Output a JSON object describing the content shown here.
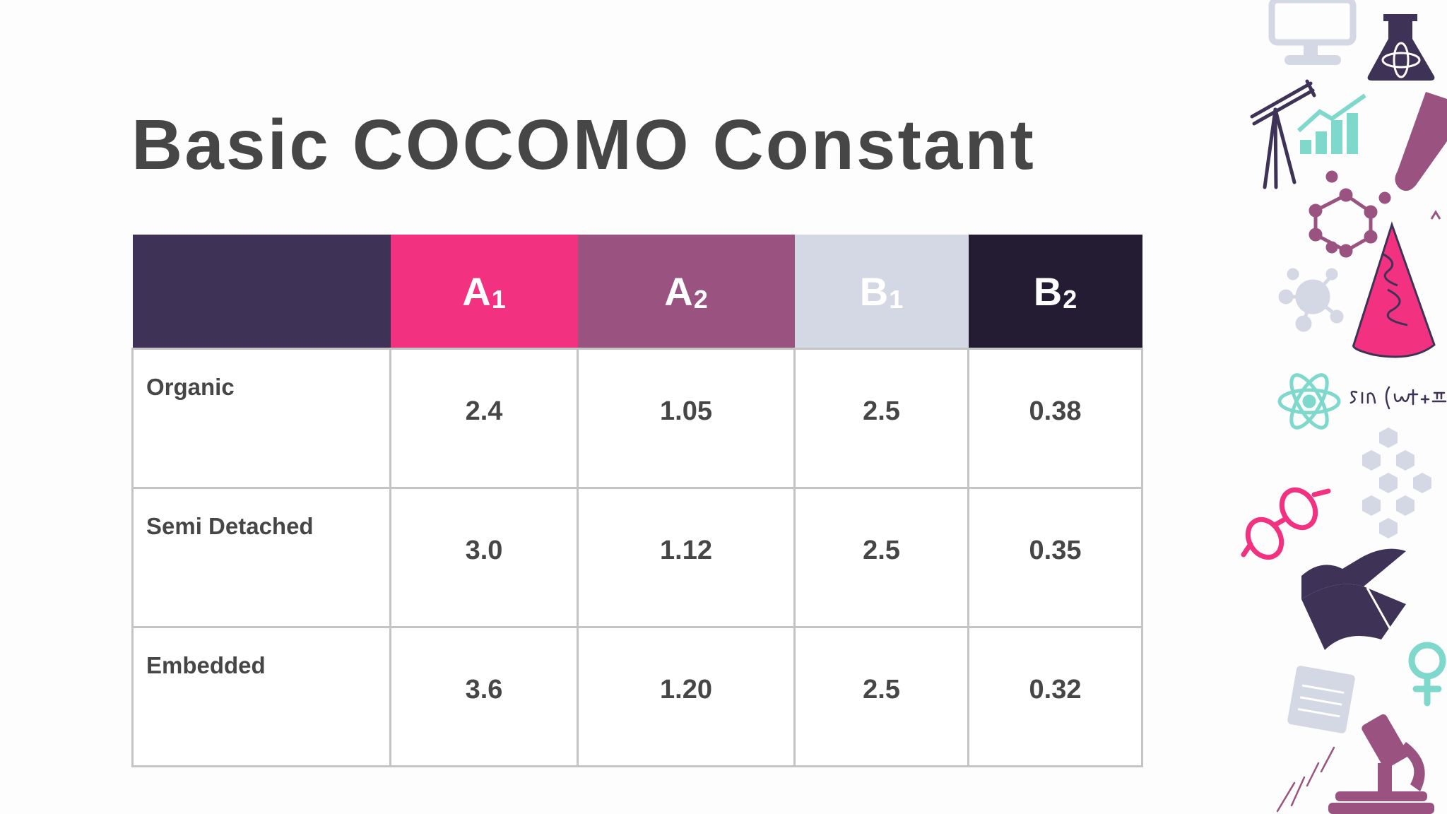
{
  "slide": {
    "title": "Basic COCOMO Constant"
  },
  "table": {
    "headers": [
      {
        "main": "",
        "sub": "",
        "color": "#3e3356"
      },
      {
        "main": "A",
        "sub": "1",
        "color": "#f23181"
      },
      {
        "main": "A",
        "sub": "2",
        "color": "#9a5380"
      },
      {
        "main": "B",
        "sub": "1",
        "color": "#d4d8e4"
      },
      {
        "main": "B",
        "sub": "2",
        "color": "#231c32"
      }
    ],
    "rows": [
      {
        "label": "Organic",
        "a1": "2.4",
        "a2": "1.05",
        "b1": "2.5",
        "b2": "0.38"
      },
      {
        "label": "Semi Detached",
        "a1": "3.0",
        "a2": "1.12",
        "b1": "2.5",
        "b2": "0.35"
      },
      {
        "label": "Embedded",
        "a1": "3.6",
        "a2": "1.20",
        "b1": "2.5",
        "b2": "0.32"
      }
    ]
  },
  "decorations": {
    "colors": {
      "navy": "#3e3356",
      "magenta": "#f23181",
      "plum": "#9a5380",
      "teal": "#7fd8cc",
      "grey": "#d4d8e4"
    },
    "icons": [
      "monitor-icon",
      "flask-icon",
      "telescope-icon",
      "growth-chart-icon",
      "test-tube-icon",
      "molecule-icon",
      "cone-icon",
      "virus-icon",
      "atom-icon",
      "formula-icon",
      "hexagon-cluster-icon",
      "glasses-icon",
      "book-icon",
      "female-symbol-icon",
      "notepad-icon",
      "microscope-icon"
    ]
  }
}
